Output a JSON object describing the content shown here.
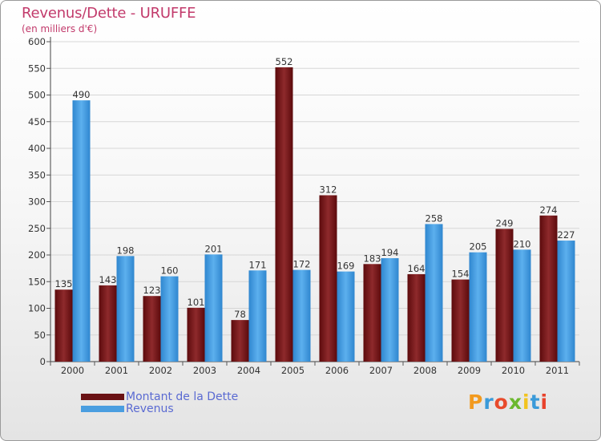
{
  "header": {
    "title": "Revenus/Dette - URUFFE",
    "subtitle": "(en milliers d'€)"
  },
  "chart_data": {
    "type": "bar",
    "categories": [
      "2000",
      "2001",
      "2002",
      "2003",
      "2004",
      "2005",
      "2006",
      "2007",
      "2008",
      "2009",
      "2010",
      "2011"
    ],
    "series": [
      {
        "name": "Montant de la Dette",
        "values": [
          135,
          143,
          123,
          101,
          78,
          552,
          312,
          183,
          164,
          154,
          249,
          274
        ],
        "color": "#7a1a1c"
      },
      {
        "name": "Revenus",
        "values": [
          490,
          198,
          160,
          201,
          171,
          172,
          169,
          194,
          258,
          205,
          210,
          227
        ],
        "color": "#4a9ee0"
      }
    ],
    "ylim": [
      0,
      600
    ],
    "yticks": [
      0,
      50,
      100,
      150,
      200,
      250,
      300,
      350,
      400,
      450,
      500,
      550,
      600
    ],
    "grid": true,
    "legend_position": "bottom-left"
  },
  "logo": {
    "letters": [
      "P",
      "r",
      "o",
      "x",
      "i",
      "t",
      "i"
    ],
    "colors": [
      "#f29a1f",
      "#3a9ad9",
      "#e84b2c",
      "#6bb82e",
      "#f2c31f",
      "#3a9ad9",
      "#e8432c"
    ]
  }
}
